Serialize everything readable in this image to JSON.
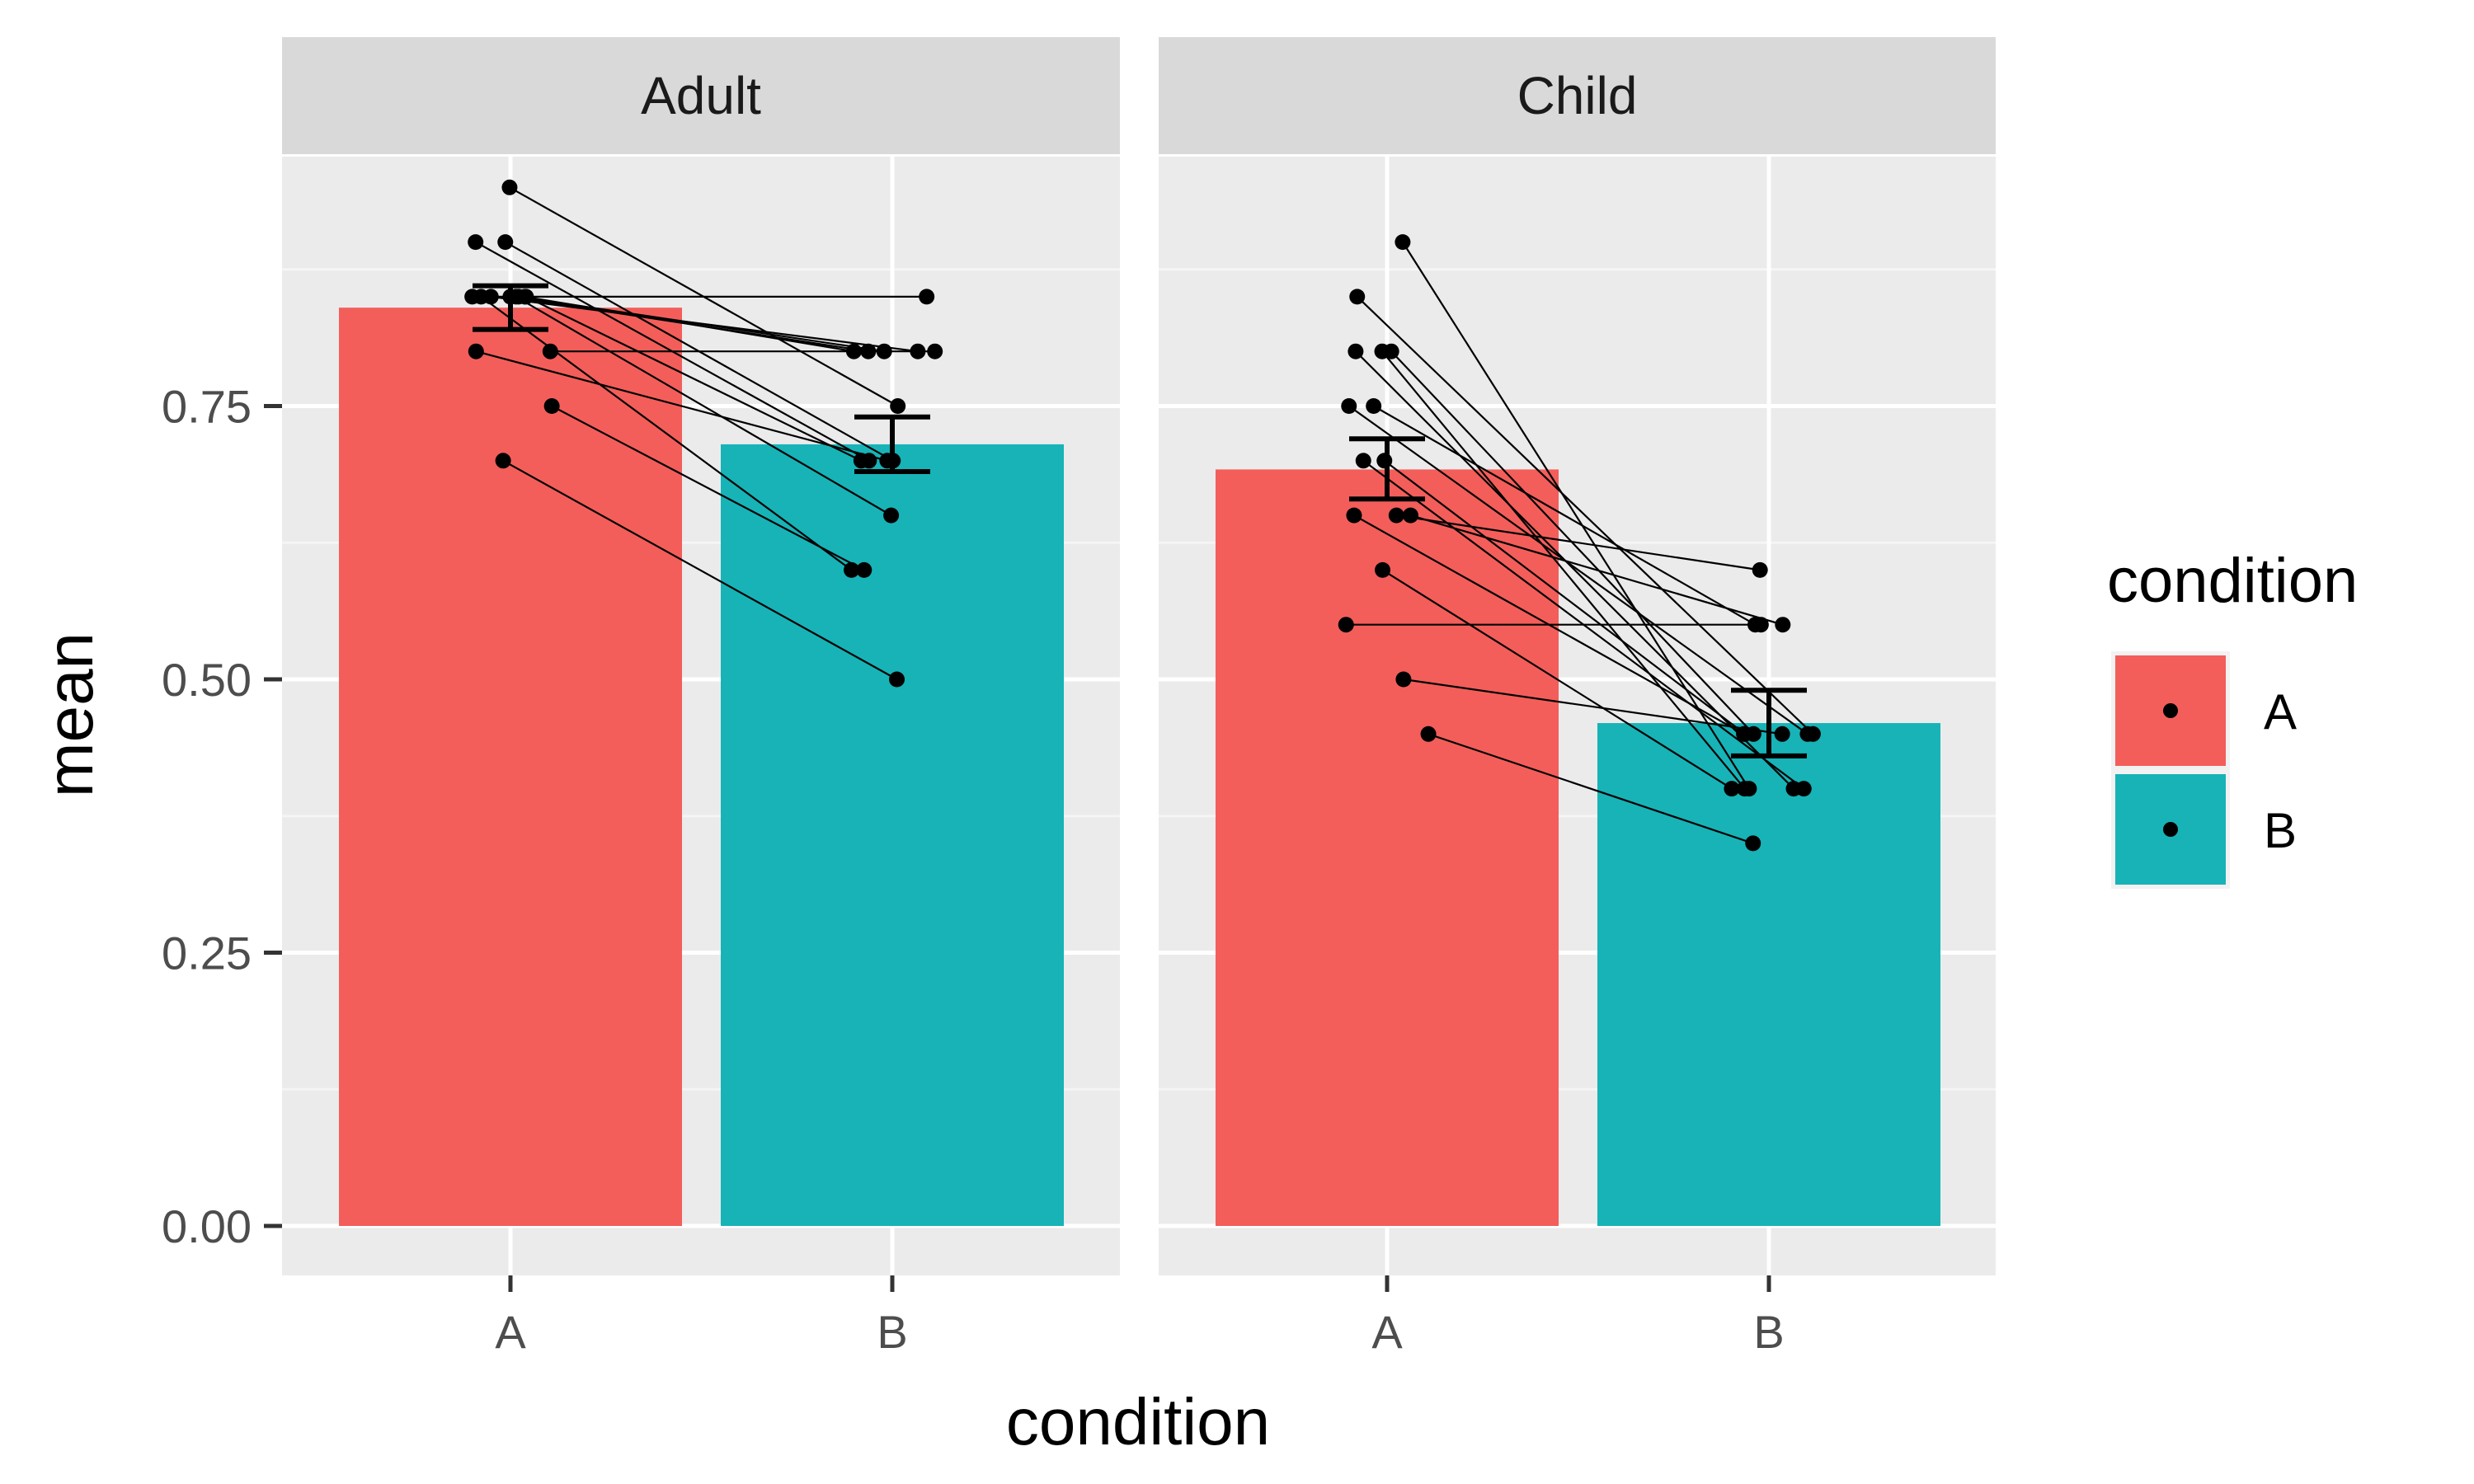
{
  "chart_data": {
    "type": "bar",
    "xlabel": "condition",
    "ylabel": "mean",
    "ylim": [
      0,
      1
    ],
    "y_ticks": [
      "0.00",
      "0.25",
      "0.50",
      "0.75"
    ],
    "y_tick_values": [
      0,
      0.25,
      0.5,
      0.75
    ],
    "categories": [
      "A",
      "B"
    ],
    "panels": [
      {
        "name": "Adult",
        "bars": [
          {
            "condition": "A",
            "mean": 0.84,
            "se_low": 0.82,
            "se_high": 0.86,
            "color": "#F35E5A"
          },
          {
            "condition": "B",
            "mean": 0.715,
            "se_low": 0.69,
            "se_high": 0.74,
            "color": "#17B3B7"
          }
        ],
        "subjects": [
          {
            "A": 0.95,
            "B": 0.75
          },
          {
            "A": 0.9,
            "B": 0.7
          },
          {
            "A": 0.9,
            "B": 0.7
          },
          {
            "A": 0.85,
            "B": 0.85
          },
          {
            "A": 0.85,
            "B": 0.8
          },
          {
            "A": 0.85,
            "B": 0.8
          },
          {
            "A": 0.85,
            "B": 0.8
          },
          {
            "A": 0.85,
            "B": 0.8
          },
          {
            "A": 0.85,
            "B": 0.7
          },
          {
            "A": 0.85,
            "B": 0.65
          },
          {
            "A": 0.85,
            "B": 0.6
          },
          {
            "A": 0.8,
            "B": 0.8
          },
          {
            "A": 0.8,
            "B": 0.7
          },
          {
            "A": 0.75,
            "B": 0.6
          },
          {
            "A": 0.7,
            "B": 0.5
          }
        ]
      },
      {
        "name": "Child",
        "bars": [
          {
            "condition": "A",
            "mean": 0.692,
            "se_low": 0.665,
            "se_high": 0.72,
            "color": "#F35E5A"
          },
          {
            "condition": "B",
            "mean": 0.46,
            "se_low": 0.43,
            "se_high": 0.49,
            "color": "#17B3B7"
          }
        ],
        "subjects": [
          {
            "A": 0.9,
            "B": 0.4
          },
          {
            "A": 0.85,
            "B": 0.45
          },
          {
            "A": 0.8,
            "B": 0.4
          },
          {
            "A": 0.8,
            "B": 0.45
          },
          {
            "A": 0.8,
            "B": 0.4
          },
          {
            "A": 0.75,
            "B": 0.55
          },
          {
            "A": 0.75,
            "B": 0.45
          },
          {
            "A": 0.7,
            "B": 0.4
          },
          {
            "A": 0.7,
            "B": 0.45
          },
          {
            "A": 0.65,
            "B": 0.6
          },
          {
            "A": 0.65,
            "B": 0.55
          },
          {
            "A": 0.65,
            "B": 0.45
          },
          {
            "A": 0.6,
            "B": 0.4
          },
          {
            "A": 0.55,
            "B": 0.55
          },
          {
            "A": 0.5,
            "B": 0.45
          },
          {
            "A": 0.45,
            "B": 0.35
          }
        ]
      }
    ],
    "legend": {
      "title": "condition",
      "position": "right",
      "entries": [
        {
          "label": "A",
          "color": "#F35E5A"
        },
        {
          "label": "B",
          "color": "#17B3B7"
        }
      ]
    },
    "grid": true
  }
}
